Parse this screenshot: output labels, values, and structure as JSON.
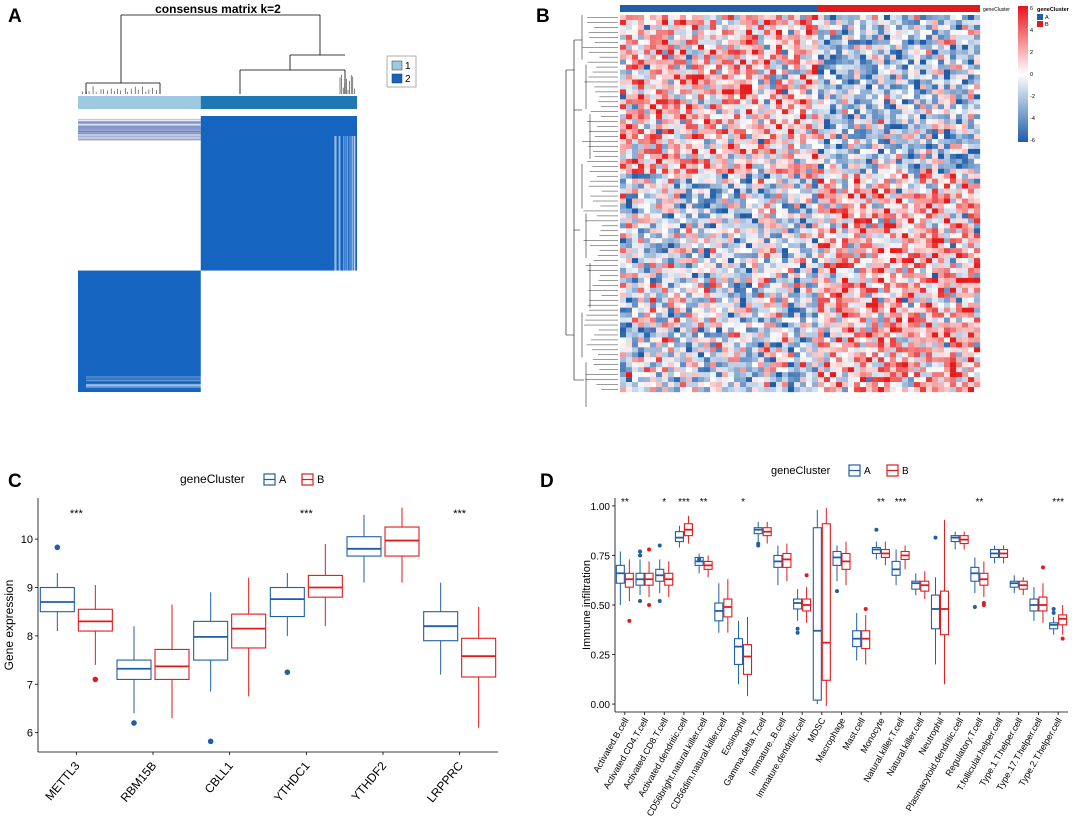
{
  "chart_data": [
    {
      "panel": "A",
      "type": "heatmap",
      "title": "consensus matrix k=2",
      "legend": {
        "items": [
          {
            "label": "1",
            "color": "#9ecae1"
          },
          {
            "label": "2",
            "color": "#1565c0"
          }
        ]
      },
      "clusters": [
        {
          "name": "1",
          "size_fraction": 0.44
        },
        {
          "name": "2",
          "size_fraction": 0.56
        }
      ]
    },
    {
      "panel": "B",
      "type": "heatmap",
      "annotation_label": "geneCluster",
      "legend": {
        "title": "geneCluster",
        "items": [
          {
            "label": "A",
            "color": "#1f5fa8"
          },
          {
            "label": "B",
            "color": "#e31a1c"
          }
        ]
      },
      "colorbar": {
        "ticks": [
          "6",
          "4",
          "2",
          "0",
          "-2",
          "-4",
          "-6"
        ],
        "range": [
          -6,
          6
        ]
      },
      "groups": [
        {
          "name": "A",
          "fraction": 0.55
        },
        {
          "name": "B",
          "fraction": 0.45
        }
      ]
    },
    {
      "panel": "C",
      "type": "box",
      "legend_title": "geneCluster",
      "legend_items": [
        {
          "label": "A",
          "color": "#1f5fa8"
        },
        {
          "label": "B",
          "color": "#e31a1c"
        }
      ],
      "ylabel": "Gene expression",
      "ylim": [
        5.6,
        10.85
      ],
      "yticks": [
        6,
        7,
        8,
        9,
        10
      ],
      "categories": [
        "METTL3",
        "RBM15B",
        "CBLL1",
        "YTHDC1",
        "YTHDF2",
        "LRPPRC"
      ],
      "significance": [
        "***",
        "",
        "",
        "***",
        "",
        "***"
      ],
      "series": [
        {
          "name": "A",
          "color": "#1f5fa8",
          "boxes": [
            {
              "q1": 8.5,
              "median": 8.7,
              "q3": 9.0,
              "low": 8.1,
              "high": 9.3,
              "outliers": [
                9.83
              ]
            },
            {
              "q1": 7.1,
              "median": 7.32,
              "q3": 7.5,
              "low": 6.4,
              "high": 8.2,
              "outliers": [
                6.2
              ]
            },
            {
              "q1": 7.5,
              "median": 7.98,
              "q3": 8.3,
              "low": 6.85,
              "high": 8.9,
              "outliers": [
                5.82
              ]
            },
            {
              "q1": 8.4,
              "median": 8.76,
              "q3": 9.0,
              "low": 8.0,
              "high": 9.3,
              "outliers": [
                7.25
              ]
            },
            {
              "q1": 9.65,
              "median": 9.8,
              "q3": 10.05,
              "low": 9.1,
              "high": 10.5,
              "outliers": []
            },
            {
              "q1": 7.9,
              "median": 8.2,
              "q3": 8.5,
              "low": 7.2,
              "high": 9.1,
              "outliers": []
            }
          ]
        },
        {
          "name": "B",
          "color": "#e31a1c",
          "boxes": [
            {
              "q1": 8.1,
              "median": 8.3,
              "q3": 8.55,
              "low": 7.4,
              "high": 9.05,
              "outliers": [
                7.1
              ]
            },
            {
              "q1": 7.1,
              "median": 7.37,
              "q3": 7.72,
              "low": 6.3,
              "high": 8.65,
              "outliers": []
            },
            {
              "q1": 7.75,
              "median": 8.15,
              "q3": 8.45,
              "low": 6.75,
              "high": 9.2,
              "outliers": []
            },
            {
              "q1": 8.8,
              "median": 9.0,
              "q3": 9.25,
              "low": 8.2,
              "high": 9.9,
              "outliers": []
            },
            {
              "q1": 9.65,
              "median": 9.97,
              "q3": 10.25,
              "low": 9.1,
              "high": 10.65,
              "outliers": []
            },
            {
              "q1": 7.15,
              "median": 7.58,
              "q3": 7.95,
              "low": 6.1,
              "high": 8.6,
              "outliers": []
            }
          ]
        }
      ]
    },
    {
      "panel": "D",
      "type": "box",
      "legend_title": "geneCluster",
      "legend_items": [
        {
          "label": "A",
          "color": "#1f5fa8"
        },
        {
          "label": "B",
          "color": "#e31a1c"
        }
      ],
      "ylabel": "Immune infiltration",
      "ylim": [
        -0.04,
        1.04
      ],
      "yticks": [
        "0.00",
        "0.25",
        "0.50",
        "0.75",
        "1.00"
      ],
      "categories": [
        "Activated.B.cell",
        "Activated.CD4.T.cell",
        "Activated.CD8.T.cell",
        "Activated.dendritic.cell",
        "CD56bright.natural.killer.cell",
        "CD56dim.natural.killer.cell",
        "Eosinophil",
        "Gamma.delta.T.cell",
        "Immature..B.cell",
        "Immature.dendritic.cell",
        "MDSC",
        "Macrophage",
        "Mast.cell",
        "Monocyte",
        "Natural.killer.T.cell",
        "Natural.killer.cell",
        "Neutrophil",
        "Plasmacytoid.dendritic.cell",
        "Regulatory.T.cell",
        "T.follicular.helper.cell",
        "Type.1.T.helper.cell",
        "Type.17.T.helper.cell",
        "Type.2.T.helper.cell"
      ],
      "significance": [
        "**",
        "",
        "*",
        "***",
        "**",
        "",
        "*",
        "",
        "",
        "",
        "",
        "",
        "",
        "**",
        "***",
        "",
        "",
        "",
        "**",
        "",
        "",
        "",
        "***"
      ],
      "series": [
        {
          "name": "A",
          "color": "#1f5fa8",
          "boxes": [
            {
              "q1": 0.61,
              "median": 0.66,
              "q3": 0.7,
              "low": 0.5,
              "high": 0.77,
              "outliers": []
            },
            {
              "q1": 0.6,
              "median": 0.63,
              "q3": 0.66,
              "low": 0.55,
              "high": 0.73,
              "outliers": [
                0.75,
                0.77,
                0.52
              ]
            },
            {
              "q1": 0.62,
              "median": 0.65,
              "q3": 0.68,
              "low": 0.56,
              "high": 0.73,
              "outliers": [
                0.8,
                0.52
              ]
            },
            {
              "q1": 0.82,
              "median": 0.84,
              "q3": 0.87,
              "low": 0.79,
              "high": 0.9,
              "outliers": []
            },
            {
              "q1": 0.7,
              "median": 0.72,
              "q3": 0.74,
              "low": 0.66,
              "high": 0.76,
              "outliers": [
                0.73
              ]
            },
            {
              "q1": 0.42,
              "median": 0.47,
              "q3": 0.51,
              "low": 0.36,
              "high": 0.61,
              "outliers": []
            },
            {
              "q1": 0.2,
              "median": 0.29,
              "q3": 0.33,
              "low": 0.1,
              "high": 0.42,
              "outliers": []
            },
            {
              "q1": 0.86,
              "median": 0.88,
              "q3": 0.89,
              "low": 0.82,
              "high": 0.92,
              "outliers": [
                0.8,
                0.81
              ]
            },
            {
              "q1": 0.69,
              "median": 0.72,
              "q3": 0.75,
              "low": 0.6,
              "high": 0.8,
              "outliers": []
            },
            {
              "q1": 0.48,
              "median": 0.51,
              "q3": 0.53,
              "low": 0.42,
              "high": 0.58,
              "outliers": [
                0.38,
                0.36
              ]
            },
            {
              "q1": 0.02,
              "median": 0.37,
              "q3": 0.89,
              "low": 0.0,
              "high": 0.98,
              "outliers": []
            },
            {
              "q1": 0.7,
              "median": 0.74,
              "q3": 0.77,
              "low": 0.62,
              "high": 0.8,
              "outliers": [
                0.57
              ]
            },
            {
              "q1": 0.29,
              "median": 0.33,
              "q3": 0.37,
              "low": 0.22,
              "high": 0.46,
              "outliers": []
            },
            {
              "q1": 0.76,
              "median": 0.78,
              "q3": 0.79,
              "low": 0.73,
              "high": 0.82,
              "outliers": [
                0.88
              ]
            },
            {
              "q1": 0.65,
              "median": 0.68,
              "q3": 0.72,
              "low": 0.6,
              "high": 0.78,
              "outliers": []
            },
            {
              "q1": 0.58,
              "median": 0.61,
              "q3": 0.62,
              "low": 0.55,
              "high": 0.66,
              "outliers": []
            },
            {
              "q1": 0.38,
              "median": 0.48,
              "q3": 0.55,
              "low": 0.2,
              "high": 0.64,
              "outliers": [
                0.84
              ]
            },
            {
              "q1": 0.82,
              "median": 0.84,
              "q3": 0.85,
              "low": 0.78,
              "high": 0.87,
              "outliers": []
            },
            {
              "q1": 0.62,
              "median": 0.66,
              "q3": 0.69,
              "low": 0.56,
              "high": 0.74,
              "outliers": [
                0.49
              ]
            },
            {
              "q1": 0.74,
              "median": 0.76,
              "q3": 0.78,
              "low": 0.71,
              "high": 0.8,
              "outliers": []
            },
            {
              "q1": 0.59,
              "median": 0.61,
              "q3": 0.62,
              "low": 0.56,
              "high": 0.65,
              "outliers": []
            },
            {
              "q1": 0.47,
              "median": 0.5,
              "q3": 0.53,
              "low": 0.42,
              "high": 0.59,
              "outliers": []
            },
            {
              "q1": 0.38,
              "median": 0.4,
              "q3": 0.41,
              "low": 0.35,
              "high": 0.44,
              "outliers": [
                0.48,
                0.46
              ]
            }
          ]
        },
        {
          "name": "B",
          "color": "#e31a1c",
          "boxes": [
            {
              "q1": 0.59,
              "median": 0.63,
              "q3": 0.66,
              "low": 0.52,
              "high": 0.73,
              "outliers": [
                0.42
              ]
            },
            {
              "q1": 0.6,
              "median": 0.63,
              "q3": 0.66,
              "low": 0.54,
              "high": 0.72,
              "outliers": [
                0.5,
                0.78
              ]
            },
            {
              "q1": 0.6,
              "median": 0.63,
              "q3": 0.66,
              "low": 0.54,
              "high": 0.72,
              "outliers": []
            },
            {
              "q1": 0.85,
              "median": 0.88,
              "q3": 0.91,
              "low": 0.81,
              "high": 0.95,
              "outliers": []
            },
            {
              "q1": 0.68,
              "median": 0.7,
              "q3": 0.72,
              "low": 0.64,
              "high": 0.75,
              "outliers": []
            },
            {
              "q1": 0.44,
              "median": 0.49,
              "q3": 0.53,
              "low": 0.36,
              "high": 0.63,
              "outliers": []
            },
            {
              "q1": 0.15,
              "median": 0.24,
              "q3": 0.3,
              "low": 0.04,
              "high": 0.44,
              "outliers": []
            },
            {
              "q1": 0.85,
              "median": 0.87,
              "q3": 0.89,
              "low": 0.81,
              "high": 0.92,
              "outliers": []
            },
            {
              "q1": 0.69,
              "median": 0.73,
              "q3": 0.76,
              "low": 0.62,
              "high": 0.81,
              "outliers": []
            },
            {
              "q1": 0.47,
              "median": 0.5,
              "q3": 0.53,
              "low": 0.41,
              "high": 0.59,
              "outliers": [
                0.65
              ]
            },
            {
              "q1": 0.12,
              "median": 0.31,
              "q3": 0.91,
              "low": -0.01,
              "high": 0.99,
              "outliers": []
            },
            {
              "q1": 0.68,
              "median": 0.72,
              "q3": 0.76,
              "low": 0.6,
              "high": 0.82,
              "outliers": []
            },
            {
              "q1": 0.28,
              "median": 0.33,
              "q3": 0.37,
              "low": 0.2,
              "high": 0.45,
              "outliers": [
                0.48
              ]
            },
            {
              "q1": 0.74,
              "median": 0.76,
              "q3": 0.78,
              "low": 0.7,
              "high": 0.82,
              "outliers": []
            },
            {
              "q1": 0.73,
              "median": 0.75,
              "q3": 0.77,
              "low": 0.68,
              "high": 0.8,
              "outliers": []
            },
            {
              "q1": 0.57,
              "median": 0.6,
              "q3": 0.62,
              "low": 0.53,
              "high": 0.67,
              "outliers": []
            },
            {
              "q1": 0.35,
              "median": 0.48,
              "q3": 0.57,
              "low": 0.1,
              "high": 0.93,
              "outliers": []
            },
            {
              "q1": 0.81,
              "median": 0.83,
              "q3": 0.85,
              "low": 0.78,
              "high": 0.87,
              "outliers": []
            },
            {
              "q1": 0.6,
              "median": 0.63,
              "q3": 0.66,
              "low": 0.54,
              "high": 0.72,
              "outliers": [
                0.51,
                0.5
              ]
            },
            {
              "q1": 0.74,
              "median": 0.76,
              "q3": 0.78,
              "low": 0.71,
              "high": 0.8,
              "outliers": []
            },
            {
              "q1": 0.58,
              "median": 0.6,
              "q3": 0.62,
              "low": 0.55,
              "high": 0.64,
              "outliers": []
            },
            {
              "q1": 0.47,
              "median": 0.5,
              "q3": 0.54,
              "low": 0.41,
              "high": 0.61,
              "outliers": [
                0.69
              ]
            },
            {
              "q1": 0.4,
              "median": 0.43,
              "q3": 0.45,
              "low": 0.35,
              "high": 0.5,
              "outliers": [
                0.33
              ]
            }
          ]
        }
      ]
    }
  ],
  "panels": {
    "a_label": "A",
    "b_label": "B",
    "c_label": "C",
    "d_label": "D"
  }
}
